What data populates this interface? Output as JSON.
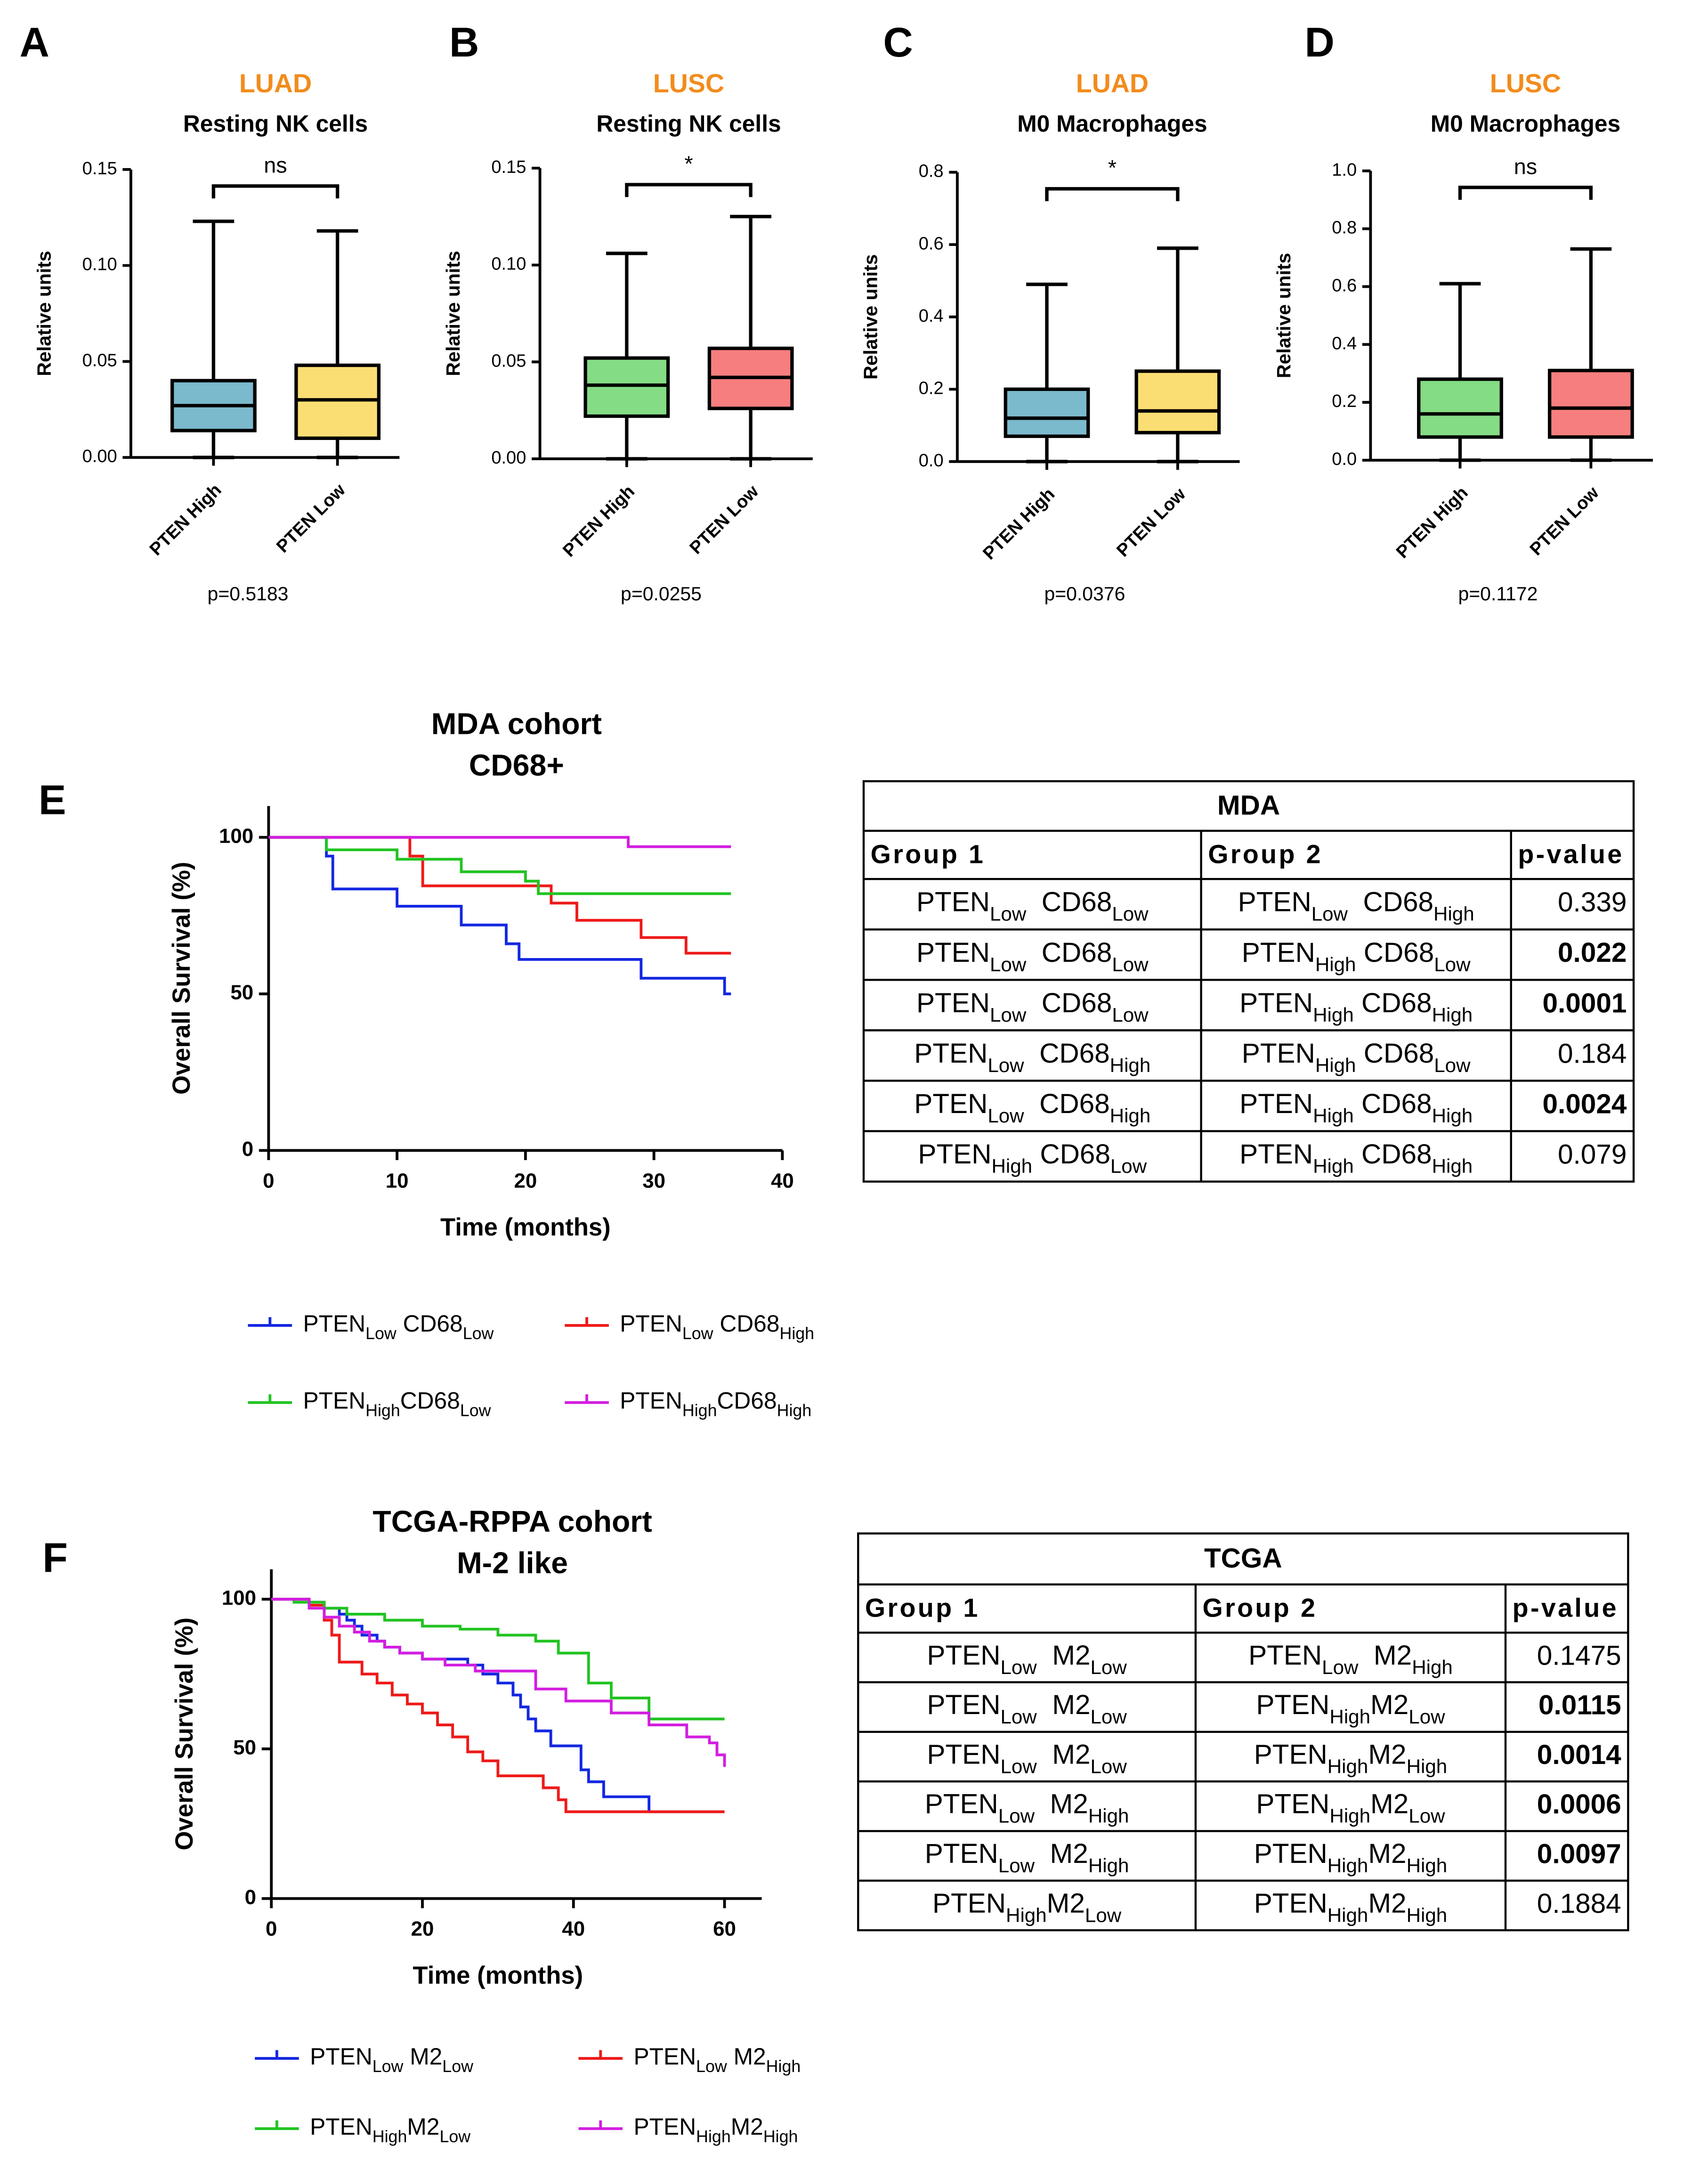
{
  "chart_data": [
    {
      "type": "box",
      "panel": "A",
      "subtitle": "LUAD",
      "title": "Resting NK cells",
      "y_label": "Relative units",
      "categories": [
        "PTEN High",
        "PTEN Low"
      ],
      "colors": [
        "#0e7fa3",
        "#f7c200"
      ],
      "min": [
        0,
        0
      ],
      "q1": [
        0.014,
        0.01
      ],
      "median": [
        0.027,
        0.03
      ],
      "q3": [
        0.04,
        0.048
      ],
      "max": [
        0.123,
        0.118
      ],
      "ylim": [
        0,
        0.15
      ],
      "yticks": [
        {
          "value": 0,
          "label": "0.00"
        },
        {
          "value": 0.05,
          "label": "0.05"
        },
        {
          "value": 0.1,
          "label": "0.10"
        },
        {
          "value": 0.15,
          "label": "0.15"
        }
      ],
      "annotation": "ns",
      "note": "p=0.5183"
    },
    {
      "type": "box",
      "panel": "B",
      "subtitle": "LUSC",
      "title": "Resting NK cells",
      "y_label": "Relative units",
      "categories": [
        "PTEN High",
        "PTEN Low"
      ],
      "colors": [
        "#1fbf1f",
        "#f01414"
      ],
      "min": [
        0,
        0
      ],
      "q1": [
        0.022,
        0.026
      ],
      "median": [
        0.038,
        0.042
      ],
      "q3": [
        0.052,
        0.057
      ],
      "max": [
        0.106,
        0.125
      ],
      "ylim": [
        0,
        0.15
      ],
      "yticks": [
        {
          "value": 0,
          "label": "0.00"
        },
        {
          "value": 0.05,
          "label": "0.05"
        },
        {
          "value": 0.1,
          "label": "0.10"
        },
        {
          "value": 0.15,
          "label": "0.15"
        }
      ],
      "annotation": "*",
      "note": "p=0.0255"
    },
    {
      "type": "box",
      "panel": "C",
      "subtitle": "LUAD",
      "title": "M0 Macrophages",
      "y_label": "Relative units",
      "categories": [
        "PTEN High",
        "PTEN Low"
      ],
      "colors": [
        "#0e7fa3",
        "#f7c200"
      ],
      "min": [
        0,
        0
      ],
      "q1": [
        0.07,
        0.08
      ],
      "median": [
        0.12,
        0.14
      ],
      "q3": [
        0.2,
        0.25
      ],
      "max": [
        0.49,
        0.59
      ],
      "ylim": [
        0,
        0.8
      ],
      "yticks": [
        {
          "value": 0,
          "label": "0.0"
        },
        0.2,
        0.4,
        0.6,
        0.8
      ],
      "annotation": "*",
      "note": "p=0.0376"
    },
    {
      "type": "box",
      "panel": "D",
      "subtitle": "LUSC",
      "title": "M0 Macrophages",
      "y_label": "Relative units",
      "categories": [
        "PTEN High",
        "PTEN Low"
      ],
      "colors": [
        "#1fbf1f",
        "#f01414"
      ],
      "min": [
        0,
        0
      ],
      "q1": [
        0.08,
        0.08
      ],
      "median": [
        0.16,
        0.18
      ],
      "q3": [
        0.28,
        0.31
      ],
      "max": [
        0.61,
        0.73
      ],
      "ylim": [
        0,
        1.0
      ],
      "yticks": [
        {
          "value": 0,
          "label": "0.0"
        },
        0.2,
        0.4,
        0.6,
        0.8,
        {
          "value": 1.0,
          "label": "1.0"
        }
      ],
      "annotation": "ns",
      "note": "p=0.1172"
    },
    {
      "type": "step",
      "panel": "E",
      "title": [
        "MDA cohort",
        "CD68+"
      ],
      "x_label": "Time (months)",
      "y_label": "Overall Survival (%)",
      "xlim": [
        0,
        40
      ],
      "xticks": [
        0,
        10,
        20,
        30,
        40
      ],
      "ylim": [
        0,
        110
      ],
      "yticks": [
        0,
        50,
        100
      ],
      "series": [
        {
          "name": [
            {
              "text": "PTEN"
            },
            {
              "sub": "Low"
            },
            {
              "text": " CD68"
            },
            {
              "sub": "Low"
            }
          ],
          "color": "#1428e0",
          "x": [
            0,
            4.5,
            5,
            10,
            15,
            18.5,
            19.5,
            29,
            35.5,
            36
          ],
          "values": [
            100,
            94,
            83.5,
            78,
            72,
            66,
            61,
            55,
            50,
            50
          ]
        },
        {
          "name": [
            {
              "text": "PTEN"
            },
            {
              "sub": "Low"
            },
            {
              "text": " CD68"
            },
            {
              "sub": "High"
            }
          ],
          "color": "#ee1a1a",
          "x": [
            0,
            11,
            12,
            22,
            24,
            29,
            32.5,
            36
          ],
          "values": [
            100,
            94,
            84.5,
            79,
            73.5,
            68,
            63,
            63
          ]
        },
        {
          "name": [
            {
              "text": "PTEN"
            },
            {
              "sub": "High"
            },
            {
              "text": "CD68"
            },
            {
              "sub": "Low"
            }
          ],
          "color": "#22c322",
          "x": [
            0,
            4.5,
            10,
            15,
            20,
            21,
            36
          ],
          "values": [
            100,
            96,
            93,
            89,
            86,
            82,
            82
          ]
        },
        {
          "name": [
            {
              "text": "PTEN"
            },
            {
              "sub": "High"
            },
            {
              "text": "CD68"
            },
            {
              "sub": "High"
            }
          ],
          "color": "#d21ee0",
          "x": [
            0,
            28,
            36
          ],
          "values": [
            100,
            97,
            97
          ]
        }
      ]
    },
    {
      "type": "step",
      "panel": "F",
      "title": [
        "TCGA-RPPA cohort",
        "M-2 like"
      ],
      "x_label": "Time (months)",
      "y_label": "Overall Survival (%)",
      "xlim": [
        0,
        60
      ],
      "xticks": [
        0,
        20,
        40,
        60
      ],
      "ylim": [
        0,
        110
      ],
      "yticks": [
        0,
        50,
        100
      ],
      "series": [
        {
          "name": [
            {
              "text": "PTEN"
            },
            {
              "sub": "Low"
            },
            {
              "text": " M2"
            },
            {
              "sub": "Low"
            }
          ],
          "color": "#1428e0",
          "x": [
            0,
            5,
            7,
            9,
            10,
            11,
            12,
            14,
            15,
            17,
            20,
            23,
            26,
            28,
            30,
            32,
            33,
            34,
            35,
            37,
            40,
            41,
            42,
            44,
            50,
            60
          ],
          "values": [
            100,
            99,
            97,
            95,
            93,
            91,
            88,
            86,
            84,
            82,
            80,
            80,
            78,
            75,
            72,
            68,
            64,
            60,
            56,
            51,
            51,
            43,
            39,
            34,
            29,
            29
          ]
        },
        {
          "name": [
            {
              "text": "PTEN"
            },
            {
              "sub": "Low"
            },
            {
              "text": " M2"
            },
            {
              "sub": "High"
            }
          ],
          "color": "#ee1a1a",
          "x": [
            0,
            5,
            7,
            8,
            9,
            12,
            14,
            16,
            18,
            20,
            22,
            24,
            26,
            28,
            30,
            34,
            36,
            38,
            39,
            60
          ],
          "values": [
            100,
            98,
            93,
            88,
            79,
            75,
            72,
            68,
            65,
            62,
            58,
            54,
            49,
            46,
            41,
            41,
            37,
            33,
            29,
            29
          ]
        },
        {
          "name": [
            {
              "text": "PTEN"
            },
            {
              "sub": "High"
            },
            {
              "text": "M2"
            },
            {
              "sub": "Low"
            }
          ],
          "color": "#22c322",
          "x": [
            0,
            3,
            7,
            10,
            15,
            20,
            25,
            30,
            35,
            38,
            42,
            45,
            50,
            60
          ],
          "values": [
            100,
            99,
            97,
            95,
            93,
            91,
            90,
            88,
            86,
            82,
            72,
            67,
            60,
            60
          ]
        },
        {
          "name": [
            {
              "text": "PTEN"
            },
            {
              "sub": "High"
            },
            {
              "text": "M2"
            },
            {
              "sub": "High"
            }
          ],
          "color": "#d21ee0",
          "x": [
            0,
            5,
            7,
            9,
            11,
            13,
            15,
            17,
            20,
            23,
            27,
            31,
            35,
            39,
            45,
            50,
            55,
            58,
            59,
            60
          ],
          "values": [
            100,
            97,
            94,
            91,
            89,
            86,
            84,
            82,
            80,
            78,
            76,
            76,
            70,
            66,
            62,
            58,
            54,
            52,
            48,
            44
          ]
        }
      ]
    }
  ],
  "tables": [
    {
      "title": "MDA",
      "columns": [
        "Group 1",
        "Group 2",
        "p-value"
      ],
      "rows": [
        [
          [
            {
              "text": "PTEN"
            },
            {
              "sub": "Low"
            },
            {
              "text": "  CD68"
            },
            {
              "sub": "Low"
            }
          ],
          [
            {
              "text": "PTEN"
            },
            {
              "sub": "Low"
            },
            {
              "text": "  CD68"
            },
            {
              "sub": "High"
            }
          ],
          "0.339"
        ],
        [
          [
            {
              "text": "PTEN"
            },
            {
              "sub": "Low"
            },
            {
              "text": "  CD68"
            },
            {
              "sub": "Low"
            }
          ],
          [
            {
              "text": "PTEN"
            },
            {
              "sub": "High"
            },
            {
              "text": " CD68"
            },
            {
              "sub": "Low"
            }
          ],
          "0.022"
        ],
        [
          [
            {
              "text": "PTEN"
            },
            {
              "sub": "Low"
            },
            {
              "text": "  CD68"
            },
            {
              "sub": "Low"
            }
          ],
          [
            {
              "text": "PTEN"
            },
            {
              "sub": "High"
            },
            {
              "text": " CD68"
            },
            {
              "sub": "High"
            }
          ],
          "0.0001"
        ],
        [
          [
            {
              "text": "PTEN"
            },
            {
              "sub": "Low"
            },
            {
              "text": "  CD68"
            },
            {
              "sub": "High"
            }
          ],
          [
            {
              "text": "PTEN"
            },
            {
              "sub": "High"
            },
            {
              "text": " CD68"
            },
            {
              "sub": "Low"
            }
          ],
          "0.184"
        ],
        [
          [
            {
              "text": "PTEN"
            },
            {
              "sub": "Low"
            },
            {
              "text": "  CD68"
            },
            {
              "sub": "High"
            }
          ],
          [
            {
              "text": "PTEN"
            },
            {
              "sub": "High"
            },
            {
              "text": " CD68"
            },
            {
              "sub": "High"
            }
          ],
          "0.0024"
        ],
        [
          [
            {
              "text": "PTEN"
            },
            {
              "sub": "High"
            },
            {
              "text": " CD68"
            },
            {
              "sub": "Low"
            }
          ],
          [
            {
              "text": "PTEN"
            },
            {
              "sub": "High"
            },
            {
              "text": " CD68"
            },
            {
              "sub": "High"
            }
          ],
          "0.079"
        ]
      ],
      "bold": [
        false,
        true,
        true,
        false,
        true,
        false
      ]
    },
    {
      "title": "TCGA",
      "columns": [
        "Group 1",
        "Group 2",
        "p-value"
      ],
      "rows": [
        [
          [
            {
              "text": "PTEN"
            },
            {
              "sub": "Low"
            },
            {
              "text": "  M2"
            },
            {
              "sub": "Low"
            }
          ],
          [
            {
              "text": "PTEN"
            },
            {
              "sub": "Low"
            },
            {
              "text": "  M2"
            },
            {
              "sub": "High"
            }
          ],
          "0.1475"
        ],
        [
          [
            {
              "text": "PTEN"
            },
            {
              "sub": "Low"
            },
            {
              "text": "  M2"
            },
            {
              "sub": "Low"
            }
          ],
          [
            {
              "text": "PTEN"
            },
            {
              "sub": "High"
            },
            {
              "text": "M2"
            },
            {
              "sub": "Low"
            }
          ],
          "0.0115"
        ],
        [
          [
            {
              "text": "PTEN"
            },
            {
              "sub": "Low"
            },
            {
              "text": "  M2"
            },
            {
              "sub": "Low"
            }
          ],
          [
            {
              "text": "PTEN"
            },
            {
              "sub": "High"
            },
            {
              "text": "M2"
            },
            {
              "sub": "High"
            }
          ],
          "0.0014"
        ],
        [
          [
            {
              "text": "PTEN"
            },
            {
              "sub": "Low"
            },
            {
              "text": "  M2"
            },
            {
              "sub": "High"
            }
          ],
          [
            {
              "text": "PTEN"
            },
            {
              "sub": "High"
            },
            {
              "text": "M2"
            },
            {
              "sub": "Low"
            }
          ],
          "0.0006"
        ],
        [
          [
            {
              "text": "PTEN"
            },
            {
              "sub": "Low"
            },
            {
              "text": "  M2"
            },
            {
              "sub": "High"
            }
          ],
          [
            {
              "text": "PTEN"
            },
            {
              "sub": "High"
            },
            {
              "text": "M2"
            },
            {
              "sub": "High"
            }
          ],
          "0.0097"
        ],
        [
          [
            {
              "text": "PTEN"
            },
            {
              "sub": "High"
            },
            {
              "text": "M2"
            },
            {
              "sub": "Low"
            }
          ],
          [
            {
              "text": "PTEN"
            },
            {
              "sub": "High"
            },
            {
              "text": "M2"
            },
            {
              "sub": "High"
            }
          ],
          "0.1884"
        ]
      ],
      "bold": [
        false,
        true,
        true,
        true,
        true,
        false
      ]
    }
  ]
}
